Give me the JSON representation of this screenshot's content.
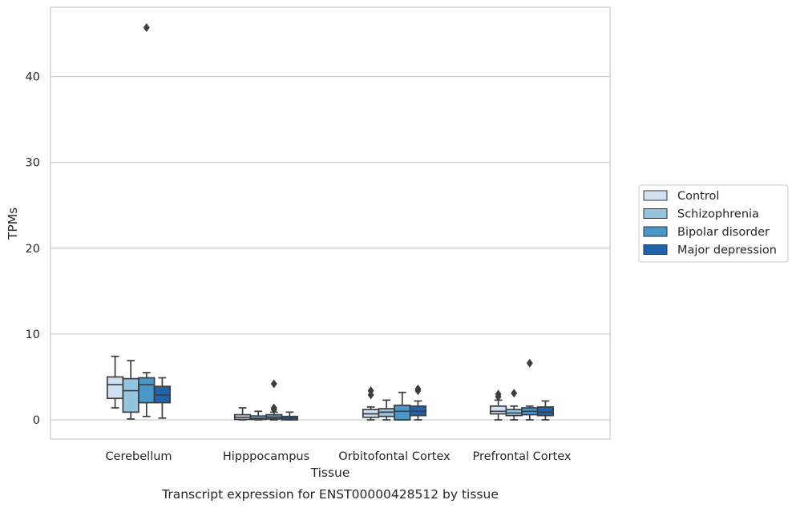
{
  "chart_data": {
    "type": "box",
    "title": "",
    "caption": "Transcript expression for ENST00000428512 by tissue",
    "xlabel": "Tissue",
    "ylabel": "TPMs",
    "ylim": [
      -2.2,
      48.5
    ],
    "yticks": [
      0,
      10,
      20,
      30,
      40
    ],
    "grid": "horizontal",
    "legend_position": "right",
    "categories": [
      "Cerebellum",
      "Hipppocampus",
      "Orbitofontal Cortex",
      "Prefrontal Cortex"
    ],
    "series": [
      {
        "name": "Control",
        "color": "#d0e1f2",
        "boxes": [
          {
            "whisker_low": 1.4,
            "q1": 2.5,
            "median": 4.1,
            "q3": 5.0,
            "whisker_high": 7.4,
            "outliers": []
          },
          {
            "whisker_low": 0.0,
            "q1": 0.05,
            "median": 0.3,
            "q3": 0.6,
            "whisker_high": 1.4,
            "outliers": []
          },
          {
            "whisker_low": 0.0,
            "q1": 0.3,
            "median": 0.7,
            "q3": 1.2,
            "whisker_high": 1.5,
            "outliers": [
              2.9,
              3.4
            ]
          },
          {
            "whisker_low": 0.0,
            "q1": 0.7,
            "median": 1.0,
            "q3": 1.6,
            "whisker_high": 2.3,
            "outliers": [
              2.7,
              3.0
            ]
          }
        ]
      },
      {
        "name": "Schizophrenia",
        "color": "#94c4df",
        "boxes": [
          {
            "whisker_low": 0.1,
            "q1": 0.9,
            "median": 3.4,
            "q3": 4.8,
            "whisker_high": 6.9,
            "outliers": []
          },
          {
            "whisker_low": 0.0,
            "q1": 0.05,
            "median": 0.2,
            "q3": 0.45,
            "whisker_high": 1.0,
            "outliers": []
          },
          {
            "whisker_low": 0.0,
            "q1": 0.4,
            "median": 0.9,
            "q3": 1.3,
            "whisker_high": 2.3,
            "outliers": []
          },
          {
            "whisker_low": 0.0,
            "q1": 0.5,
            "median": 0.8,
            "q3": 1.2,
            "whisker_high": 1.6,
            "outliers": [
              3.1
            ]
          }
        ]
      },
      {
        "name": "Bipolar disorder",
        "color": "#4a98c9",
        "boxes": [
          {
            "whisker_low": 0.4,
            "q1": 2.0,
            "median": 4.1,
            "q3": 4.9,
            "whisker_high": 5.5,
            "outliers": [
              45.7
            ]
          },
          {
            "whisker_low": 0.0,
            "q1": 0.1,
            "median": 0.3,
            "q3": 0.6,
            "whisker_high": 0.9,
            "outliers": [
              1.2,
              1.4,
              4.2
            ]
          },
          {
            "whisker_low": 0.0,
            "q1": 0.0,
            "median": 1.0,
            "q3": 1.7,
            "whisker_high": 3.2,
            "outliers": []
          },
          {
            "whisker_low": 0.0,
            "q1": 0.6,
            "median": 1.0,
            "q3": 1.4,
            "whisker_high": 1.6,
            "outliers": [
              6.6
            ]
          }
        ]
      },
      {
        "name": "Major depression",
        "color": "#2163aa",
        "boxes": [
          {
            "whisker_low": 0.2,
            "q1": 2.0,
            "median": 2.9,
            "q3": 3.9,
            "whisker_high": 4.9,
            "outliers": []
          },
          {
            "whisker_low": 0.0,
            "q1": 0.0,
            "median": 0.2,
            "q3": 0.4,
            "whisker_high": 0.9,
            "outliers": []
          },
          {
            "whisker_low": 0.0,
            "q1": 0.5,
            "median": 1.0,
            "q3": 1.6,
            "whisker_high": 2.2,
            "outliers": [
              3.4,
              3.6
            ]
          },
          {
            "whisker_low": 0.0,
            "q1": 0.5,
            "median": 0.9,
            "q3": 1.5,
            "whisker_high": 2.2,
            "outliers": []
          }
        ]
      }
    ]
  }
}
